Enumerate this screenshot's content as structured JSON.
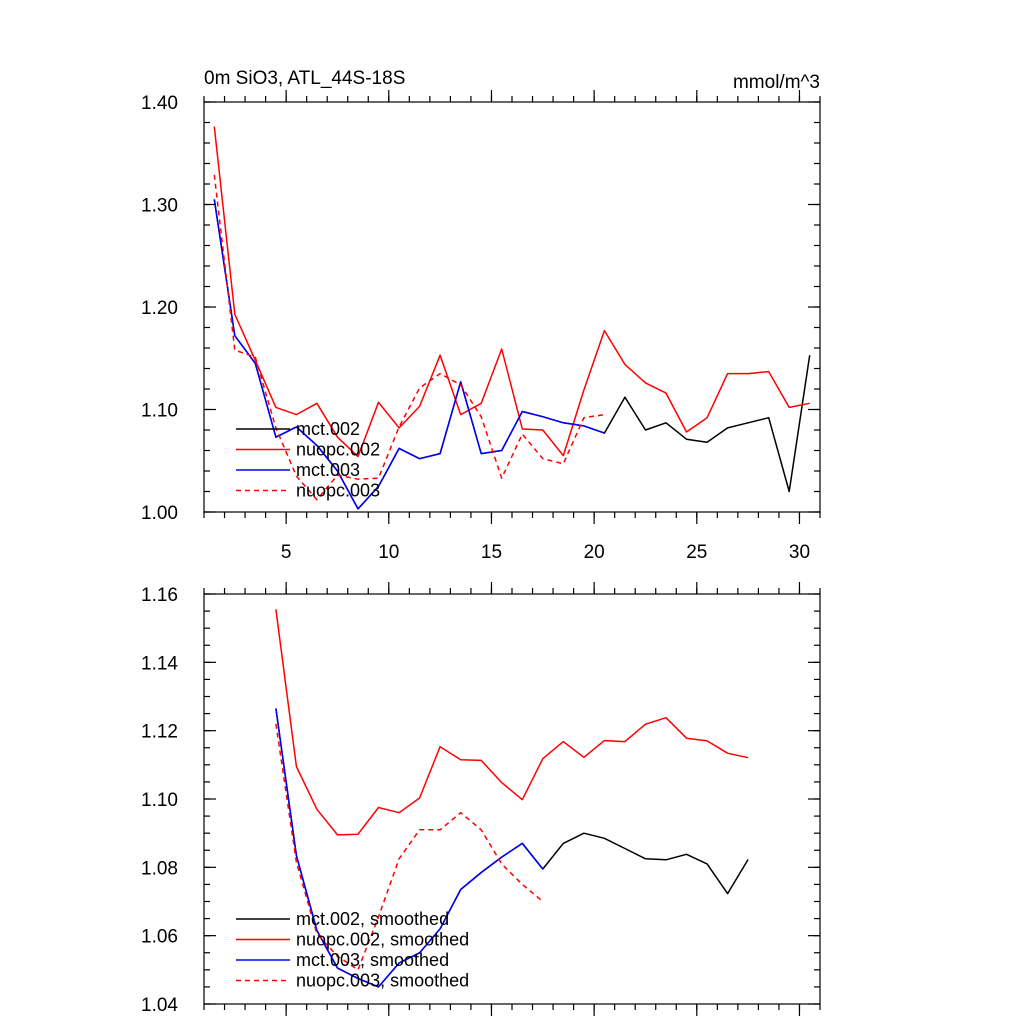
{
  "title_left": "0m SiO3, ATL_44S-18S",
  "title_right": "mmol/m^3",
  "colors": {
    "mct002": "#000000",
    "nuopc002": "#ff0000",
    "mct003": "#0000ff",
    "nuopc003": "#ff0000"
  },
  "chart_data": [
    {
      "type": "line",
      "title": "0m SiO3, ATL_44S-18S",
      "units": "mmol/m^3",
      "xlim": [
        1,
        31
      ],
      "ylim": [
        1.0,
        1.4
      ],
      "xticks": [
        5,
        10,
        15,
        20,
        25,
        30
      ],
      "xtick_labels": [
        "5",
        "10",
        "15",
        "20",
        "25",
        "30"
      ],
      "yticks": [
        1.0,
        1.1,
        1.2,
        1.3,
        1.4
      ],
      "ytick_labels": [
        "1.00",
        "1.10",
        "1.20",
        "1.30",
        "1.40"
      ],
      "legend_position": "lower-left",
      "series": [
        {
          "name": "mct.002",
          "color": "#000000",
          "dash": "solid",
          "x": [
            1.5,
            2.5,
            3.5,
            4.5,
            5.5,
            6.5,
            7.5,
            8.5,
            9.5,
            10.5,
            11.5,
            12.5,
            13.5,
            14.5,
            15.5,
            16.5,
            17.5,
            18.5,
            19.5,
            20.5,
            21.5,
            22.5,
            23.5,
            24.5,
            25.5,
            26.5,
            27.5,
            28.5,
            29.5,
            30.5
          ],
          "values": [
            1.305,
            1.172,
            1.145,
            1.073,
            1.083,
            1.065,
            1.04,
            1.003,
            1.025,
            1.062,
            1.052,
            1.057,
            1.127,
            1.057,
            1.06,
            1.098,
            1.093,
            1.087,
            1.084,
            1.077,
            1.112,
            1.08,
            1.087,
            1.071,
            1.068,
            1.082,
            1.087,
            1.092,
            1.02,
            1.153
          ]
        },
        {
          "name": "nuopc.002",
          "color": "#ff0000",
          "dash": "solid",
          "x": [
            1.5,
            2.5,
            3.5,
            4.5,
            5.5,
            6.5,
            7.5,
            8.5,
            9.5,
            10.5,
            11.5,
            12.5,
            13.5,
            14.5,
            15.5,
            16.5,
            17.5,
            18.5,
            19.5,
            20.5,
            21.5,
            22.5,
            23.5,
            24.5,
            25.5,
            26.5,
            27.5,
            28.5,
            29.5,
            30.5
          ],
          "values": [
            1.376,
            1.193,
            1.148,
            1.102,
            1.095,
            1.106,
            1.073,
            1.054,
            1.107,
            1.082,
            1.103,
            1.153,
            1.095,
            1.106,
            1.159,
            1.081,
            1.08,
            1.055,
            1.119,
            1.177,
            1.144,
            1.126,
            1.116,
            1.078,
            1.092,
            1.135,
            1.135,
            1.137,
            1.102,
            1.106
          ]
        },
        {
          "name": "mct.003",
          "color": "#0000ff",
          "dash": "solid",
          "x": [
            1.5,
            2.5,
            3.5,
            4.5,
            5.5,
            6.5,
            7.5,
            8.5,
            9.5,
            10.5,
            11.5,
            12.5,
            13.5,
            14.5,
            15.5,
            16.5,
            17.5,
            18.5,
            19.5,
            20.5
          ],
          "values": [
            1.305,
            1.172,
            1.145,
            1.073,
            1.083,
            1.065,
            1.04,
            1.003,
            1.025,
            1.062,
            1.052,
            1.057,
            1.127,
            1.057,
            1.06,
            1.098,
            1.093,
            1.087,
            1.084,
            1.077
          ]
        },
        {
          "name": "nuopc.003",
          "color": "#ff0000",
          "dash": "dashed",
          "x": [
            1.5,
            2.5,
            3.5,
            4.5,
            5.5,
            6.5,
            7.5,
            8.5,
            9.5,
            10.5,
            11.5,
            12.5,
            13.5,
            14.5,
            15.5,
            16.5,
            17.5,
            18.5,
            19.5,
            20.5
          ],
          "values": [
            1.329,
            1.158,
            1.151,
            1.082,
            1.035,
            1.012,
            1.036,
            1.032,
            1.033,
            1.083,
            1.121,
            1.135,
            1.124,
            1.093,
            1.033,
            1.076,
            1.052,
            1.047,
            1.092,
            1.095
          ]
        }
      ]
    },
    {
      "type": "line",
      "title": "",
      "xlim": [
        1,
        31
      ],
      "ylim": [
        1.04,
        1.16
      ],
      "xticks": [
        5,
        10,
        15,
        20,
        25,
        30
      ],
      "yticks": [
        1.04,
        1.06,
        1.08,
        1.1,
        1.12,
        1.14,
        1.16
      ],
      "ytick_labels": [
        "1.04",
        "1.06",
        "1.08",
        "1.10",
        "1.12",
        "1.14",
        "1.16"
      ],
      "legend_position": "lower-left",
      "series": [
        {
          "name": "mct.002, smoothed",
          "color": "#000000",
          "dash": "solid",
          "x": [
            4.5,
            5.5,
            6.5,
            7.5,
            8.5,
            9.5,
            10.5,
            11.5,
            12.5,
            13.5,
            14.5,
            15.5,
            16.5,
            17.5,
            18.5,
            19.5,
            20.5,
            21.5,
            22.5,
            23.5,
            24.5,
            25.5,
            26.5,
            27.5
          ],
          "values": [
            1.1265,
            1.0835,
            1.0615,
            1.0505,
            1.0475,
            1.045,
            1.052,
            1.055,
            1.062,
            1.0735,
            1.0785,
            1.083,
            1.087,
            1.0795,
            1.087,
            1.09,
            1.0885,
            1.0855,
            1.0825,
            1.0822,
            1.0838,
            1.081,
            1.0723,
            1.0823
          ]
        },
        {
          "name": "nuopc.002, smoothed",
          "color": "#ff0000",
          "dash": "solid",
          "x": [
            4.5,
            5.5,
            6.5,
            7.5,
            8.5,
            9.5,
            10.5,
            11.5,
            12.5,
            13.5,
            14.5,
            15.5,
            16.5,
            17.5,
            18.5,
            19.5,
            20.5,
            21.5,
            22.5,
            23.5,
            24.5,
            25.5,
            26.5,
            27.5
          ],
          "values": [
            1.1555,
            1.1095,
            1.097,
            1.0895,
            1.0897,
            1.0975,
            1.096,
            1.1003,
            1.1153,
            1.1115,
            1.1113,
            1.1048,
            1.0998,
            1.1118,
            1.1168,
            1.1122,
            1.1171,
            1.1168,
            1.1219,
            1.1238,
            1.1178,
            1.117,
            1.1134,
            1.1121
          ]
        },
        {
          "name": "mct.003, smoothed",
          "color": "#0000ff",
          "dash": "solid",
          "x": [
            4.5,
            5.5,
            6.5,
            7.5,
            8.5,
            9.5,
            10.5,
            11.5,
            12.5,
            13.5,
            14.5,
            15.5,
            16.5,
            17.5
          ],
          "values": [
            1.1265,
            1.0835,
            1.0615,
            1.0505,
            1.0475,
            1.045,
            1.052,
            1.055,
            1.062,
            1.0735,
            1.0785,
            1.083,
            1.087,
            1.0795
          ]
        },
        {
          "name": "nuopc.003, smoothed",
          "color": "#ff0000",
          "dash": "dashed",
          "x": [
            4.5,
            5.5,
            6.5,
            7.5,
            8.5,
            9.5,
            10.5,
            11.5,
            12.5,
            13.5,
            14.5,
            15.5,
            16.5,
            17.5
          ],
          "values": [
            1.122,
            1.0815,
            1.0605,
            1.054,
            1.05,
            1.0655,
            1.0825,
            1.091,
            1.091,
            1.096,
            1.091,
            1.081,
            1.075,
            1.07
          ]
        }
      ]
    }
  ]
}
